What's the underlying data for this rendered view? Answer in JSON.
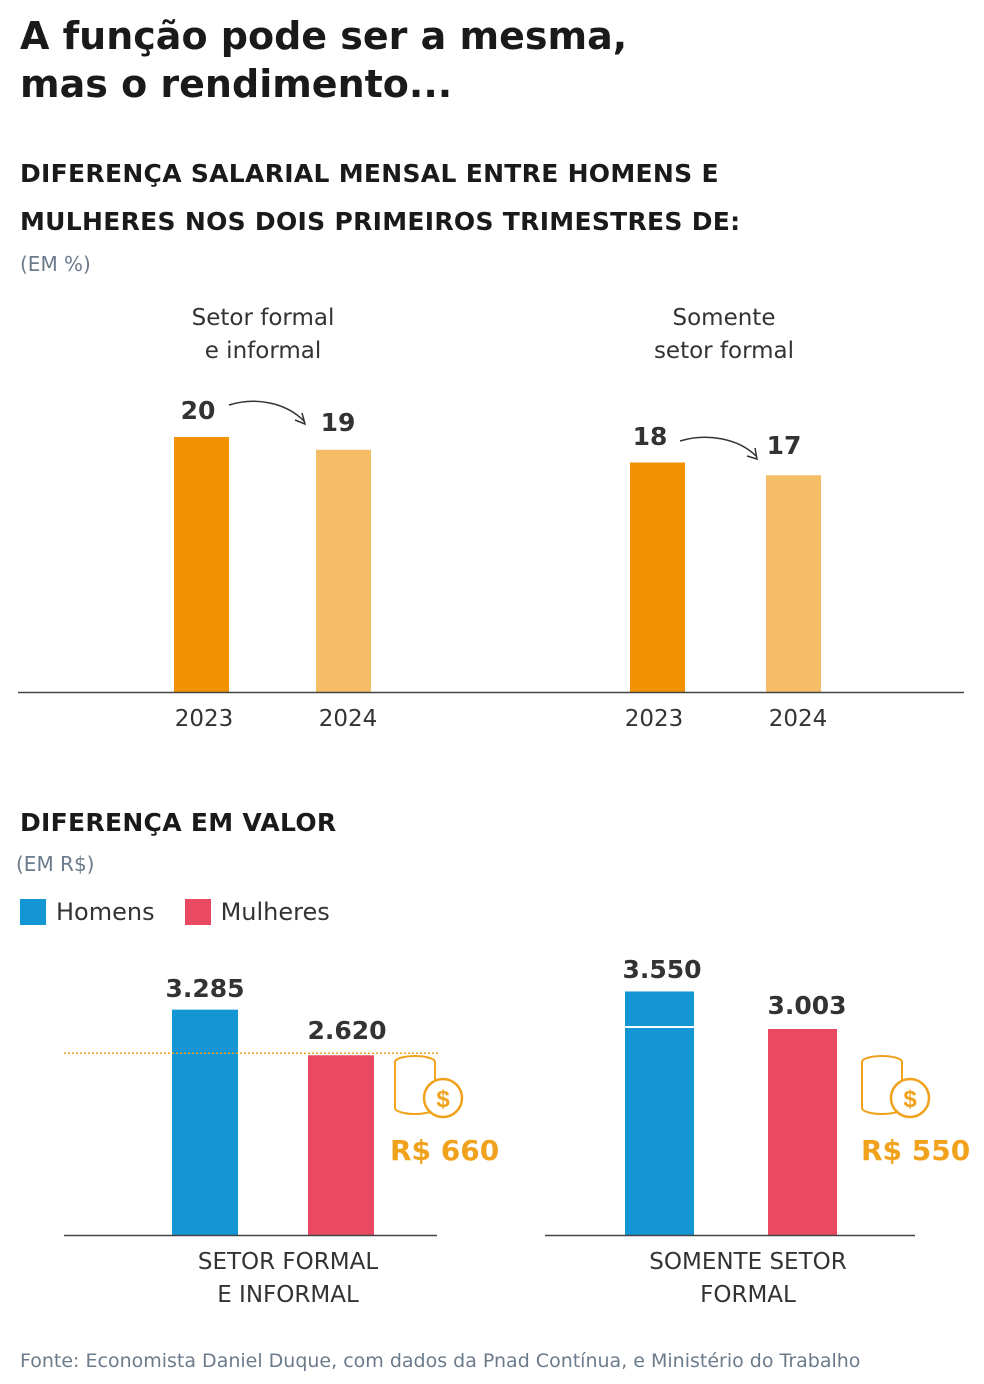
{
  "header": {
    "title_line1": "A função pode ser a mesma,",
    "title_line2": "mas o rendimento...",
    "subtitle_line1": "DIFERENÇA SALARIAL MENSAL ENTRE HOMENS E",
    "subtitle_line2": "MULHERES NOS DOIS PRIMEIROS TRIMESTRES DE:",
    "unit": "(EM %)"
  },
  "section2": {
    "title": "DIFERENÇA EM VALOR",
    "unit": "(EM R$)"
  },
  "legend": {
    "men_label": "Homens",
    "women_label": "Mulheres"
  },
  "colors": {
    "orange_dark": "#f39200",
    "orange_light": "#f5be66",
    "men": "#1496d4",
    "women": "#ea4a61",
    "gap": "#f0a21c"
  },
  "icons": [
    "coin-stack-icon",
    "dollar-coin-icon",
    "curved-arrow-icon"
  ],
  "chart_data": [
    {
      "type": "bar",
      "title": "DIFERENÇA SALARIAL MENSAL ENTRE HOMENS E MULHERES NOS DOIS PRIMEIROS TRIMESTRES DE:",
      "ylabel": "(EM %)",
      "groups": [
        {
          "label_line1": "Setor formal",
          "label_line2": "e informal",
          "categories": [
            "2023",
            "2024"
          ],
          "values": [
            20,
            19
          ]
        },
        {
          "label_line1": "Somente",
          "label_line2": "setor formal",
          "categories": [
            "2023",
            "2024"
          ],
          "values": [
            18,
            17
          ]
        }
      ],
      "ylim": [
        0,
        20
      ]
    },
    {
      "type": "bar",
      "title": "DIFERENÇA EM VALOR",
      "ylabel": "(EM R$)",
      "series_names": [
        "Homens",
        "Mulheres"
      ],
      "groups": [
        {
          "label_line1": "SETOR FORMAL",
          "label_line2": "E INFORMAL",
          "values": [
            3285,
            2620
          ],
          "value_labels": [
            "3.285",
            "2.620"
          ],
          "gap_label": "R$ 660"
        },
        {
          "label_line1": "SOMENTE SETOR",
          "label_line2": "FORMAL",
          "values": [
            3550,
            3003
          ],
          "value_labels": [
            "3.550",
            "3.003"
          ],
          "gap_label": "R$ 550"
        }
      ]
    }
  ],
  "source": "Fonte: Economista Daniel Duque, com dados da Pnad Contínua, e Ministério do Trabalho"
}
